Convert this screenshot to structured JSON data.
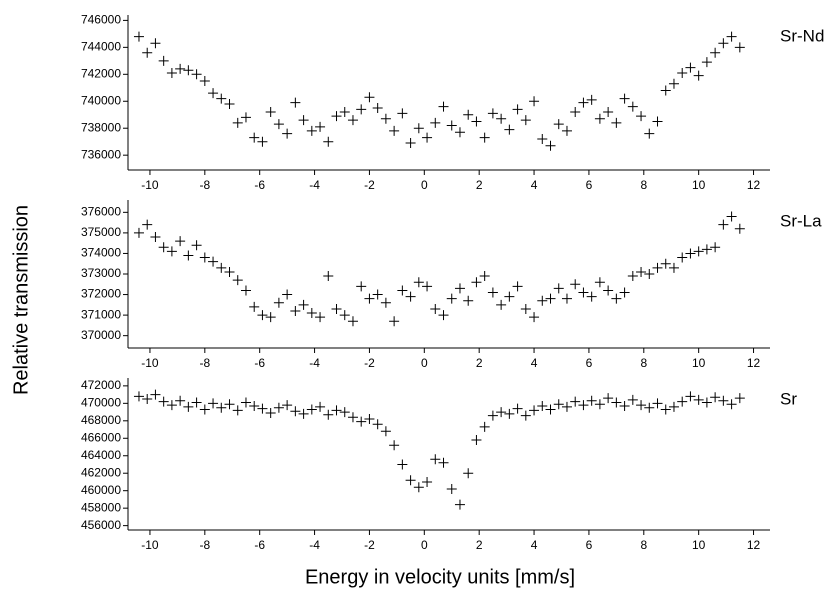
{
  "ylabel": "Relative transmission",
  "xlabel": "Energy in velocity units [mm/s]",
  "chart_data": [
    {
      "type": "scatter",
      "label": "Sr-Nd",
      "color": "#000000",
      "xlim": [
        -10.8,
        12.6
      ],
      "xticks": [
        -10,
        -8,
        -6,
        -4,
        -2,
        0,
        2,
        4,
        6,
        8,
        10,
        12
      ],
      "ylim": [
        734900,
        746400
      ],
      "yticks": [
        736000,
        738000,
        740000,
        742000,
        744000,
        746000
      ],
      "x": [
        -10.4,
        -10.1,
        -9.8,
        -9.5,
        -9.2,
        -8.9,
        -8.6,
        -8.3,
        -8.0,
        -7.7,
        -7.4,
        -7.1,
        -6.8,
        -6.5,
        -6.2,
        -5.9,
        -5.6,
        -5.3,
        -5.0,
        -4.7,
        -4.4,
        -4.1,
        -3.8,
        -3.5,
        -3.2,
        -2.9,
        -2.6,
        -2.3,
        -2.0,
        -1.7,
        -1.4,
        -1.1,
        -0.8,
        -0.5,
        -0.2,
        0.1,
        0.4,
        0.7,
        1.0,
        1.3,
        1.6,
        1.9,
        2.2,
        2.5,
        2.8,
        3.1,
        3.4,
        3.7,
        4.0,
        4.3,
        4.6,
        4.9,
        5.2,
        5.5,
        5.8,
        6.1,
        6.4,
        6.7,
        7.0,
        7.3,
        7.6,
        7.9,
        8.2,
        8.5,
        8.8,
        9.1,
        9.4,
        9.7,
        10.0,
        10.3,
        10.6,
        10.9,
        11.2,
        11.5
      ],
      "values": [
        744800,
        743600,
        744300,
        743000,
        742100,
        742400,
        742300,
        742000,
        741500,
        740600,
        740200,
        739800,
        738400,
        738800,
        737300,
        737000,
        739200,
        738300,
        737600,
        739900,
        738600,
        737800,
        738100,
        737000,
        738900,
        739200,
        738600,
        739400,
        740300,
        739500,
        738700,
        737800,
        739100,
        736900,
        738000,
        737300,
        738400,
        739600,
        738200,
        737700,
        739000,
        738500,
        737300,
        739100,
        738700,
        737900,
        739400,
        738600,
        740000,
        737200,
        736700,
        738300,
        737800,
        739200,
        739900,
        740100,
        738700,
        739200,
        738400,
        740200,
        739600,
        738900,
        737600,
        738500,
        740800,
        741300,
        742100,
        742500,
        741900,
        742900,
        743600,
        744300,
        744800,
        744000
      ]
    },
    {
      "type": "scatter",
      "label": "Sr-La",
      "color": "#000000",
      "xlim": [
        -10.8,
        12.6
      ],
      "xticks": [
        -10,
        -8,
        -6,
        -4,
        -2,
        0,
        2,
        4,
        6,
        8,
        10,
        12
      ],
      "ylim": [
        369400,
        376600
      ],
      "yticks": [
        370000,
        371000,
        372000,
        373000,
        374000,
        375000,
        376000
      ],
      "x": [
        -10.4,
        -10.1,
        -9.8,
        -9.5,
        -9.2,
        -8.9,
        -8.6,
        -8.3,
        -8.0,
        -7.7,
        -7.4,
        -7.1,
        -6.8,
        -6.5,
        -6.2,
        -5.9,
        -5.6,
        -5.3,
        -5.0,
        -4.7,
        -4.4,
        -4.1,
        -3.8,
        -3.5,
        -3.2,
        -2.9,
        -2.6,
        -2.3,
        -2.0,
        -1.7,
        -1.4,
        -1.1,
        -0.8,
        -0.5,
        -0.2,
        0.1,
        0.4,
        0.7,
        1.0,
        1.3,
        1.6,
        1.9,
        2.2,
        2.5,
        2.8,
        3.1,
        3.4,
        3.7,
        4.0,
        4.3,
        4.6,
        4.9,
        5.2,
        5.5,
        5.8,
        6.1,
        6.4,
        6.7,
        7.0,
        7.3,
        7.6,
        7.9,
        8.2,
        8.5,
        8.8,
        9.1,
        9.4,
        9.7,
        10.0,
        10.3,
        10.6,
        10.9,
        11.2,
        11.5
      ],
      "values": [
        375000,
        375400,
        374800,
        374300,
        374100,
        374600,
        373900,
        374400,
        373800,
        373600,
        373300,
        373100,
        372700,
        372200,
        371400,
        371000,
        370900,
        371600,
        372000,
        371200,
        371500,
        371100,
        370900,
        372900,
        371300,
        371000,
        370700,
        372400,
        371800,
        372000,
        371600,
        370700,
        372200,
        371900,
        372600,
        372400,
        371300,
        371000,
        371800,
        372300,
        371700,
        372600,
        372900,
        372100,
        371500,
        371900,
        372400,
        371300,
        370900,
        371700,
        371800,
        372300,
        371800,
        372500,
        372100,
        371900,
        372600,
        372200,
        371800,
        372100,
        372900,
        373100,
        373000,
        373300,
        373500,
        373300,
        373800,
        374000,
        374100,
        374200,
        374300,
        375400,
        375800,
        375200
      ]
    },
    {
      "type": "scatter",
      "label": "Sr",
      "color": "#000000",
      "xlim": [
        -10.8,
        12.6
      ],
      "xticks": [
        -10,
        -8,
        -6,
        -4,
        -2,
        0,
        2,
        4,
        6,
        8,
        10,
        12
      ],
      "ylim": [
        455500,
        472900
      ],
      "yticks": [
        456000,
        458000,
        460000,
        462000,
        464000,
        466000,
        468000,
        470000,
        472000
      ],
      "x": [
        -10.4,
        -10.1,
        -9.8,
        -9.5,
        -9.2,
        -8.9,
        -8.6,
        -8.3,
        -8.0,
        -7.7,
        -7.4,
        -7.1,
        -6.8,
        -6.5,
        -6.2,
        -5.9,
        -5.6,
        -5.3,
        -5.0,
        -4.7,
        -4.4,
        -4.1,
        -3.8,
        -3.5,
        -3.2,
        -2.9,
        -2.6,
        -2.3,
        -2.0,
        -1.7,
        -1.4,
        -1.1,
        -0.8,
        -0.5,
        -0.2,
        0.1,
        0.4,
        0.7,
        1.0,
        1.3,
        1.6,
        1.9,
        2.2,
        2.5,
        2.8,
        3.1,
        3.4,
        3.7,
        4.0,
        4.3,
        4.6,
        4.9,
        5.2,
        5.5,
        5.8,
        6.1,
        6.4,
        6.7,
        7.0,
        7.3,
        7.6,
        7.9,
        8.2,
        8.5,
        8.8,
        9.1,
        9.4,
        9.7,
        10.0,
        10.3,
        10.6,
        10.9,
        11.2,
        11.5
      ],
      "values": [
        470800,
        470500,
        471000,
        470200,
        469800,
        470300,
        469600,
        470100,
        469300,
        470000,
        469500,
        469900,
        469200,
        470100,
        469700,
        469400,
        468900,
        469500,
        469800,
        469100,
        468800,
        469300,
        469600,
        468700,
        469200,
        469000,
        468400,
        467900,
        468200,
        467600,
        466800,
        465200,
        463000,
        461200,
        460400,
        461000,
        463600,
        463200,
        460200,
        458400,
        462000,
        465800,
        467300,
        468600,
        469000,
        468800,
        469400,
        468600,
        469200,
        469700,
        469300,
        469900,
        469600,
        470200,
        469800,
        470300,
        469900,
        470600,
        470100,
        469700,
        470400,
        469800,
        469500,
        470000,
        469300,
        469600,
        470200,
        470800,
        470400,
        470100,
        470700,
        470300,
        469900,
        470600
      ]
    }
  ]
}
